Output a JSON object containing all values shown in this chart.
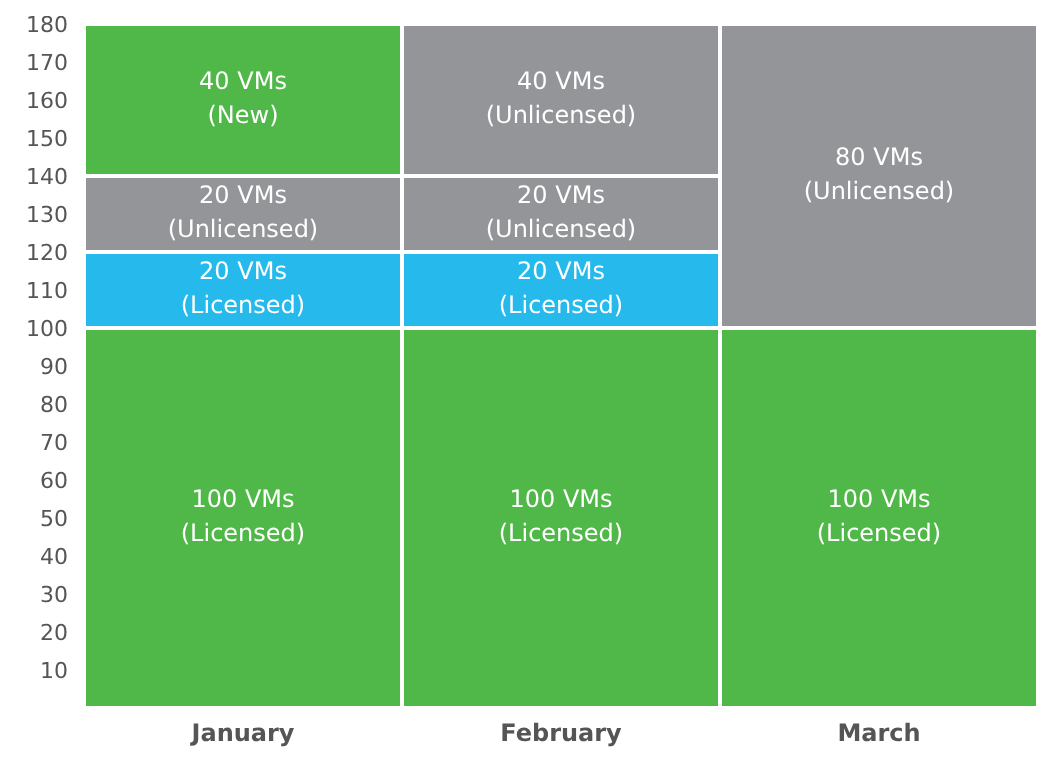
{
  "chart_data": {
    "type": "bar",
    "stacked": true,
    "categories": [
      "January",
      "February",
      "March"
    ],
    "ylim": [
      0,
      180
    ],
    "yticks": [
      10,
      20,
      30,
      40,
      50,
      60,
      70,
      80,
      90,
      100,
      110,
      120,
      130,
      140,
      150,
      160,
      170,
      180
    ],
    "grid": false,
    "legend": false,
    "series": [
      {
        "color": "#50b848",
        "values": [
          100,
          100,
          100
        ],
        "value_labels": [
          "100 VMs\n(Licensed)",
          "100 VMs\n(Licensed)",
          "100 VMs\n(Licensed)"
        ]
      },
      {
        "color": "#25b9ec",
        "values": [
          20,
          20,
          null
        ],
        "value_labels": [
          "20 VMs\n(Licensed)",
          "20 VMs\n(Licensed)",
          null
        ]
      },
      {
        "color": "#939598",
        "values": [
          20,
          20,
          80
        ],
        "value_labels": [
          "20 VMs\n(Unlicensed)",
          "20 VMs\n(Unlicensed)",
          "80 VMs\n(Unlicensed)"
        ]
      },
      {
        "color": "#939598",
        "colors": [
          "#50b848",
          "#939598",
          null
        ],
        "values": [
          40,
          40,
          null
        ],
        "value_labels": [
          "40 VMs\n(New)",
          "40 VMs\n(Unlicensed)",
          null
        ]
      }
    ]
  }
}
